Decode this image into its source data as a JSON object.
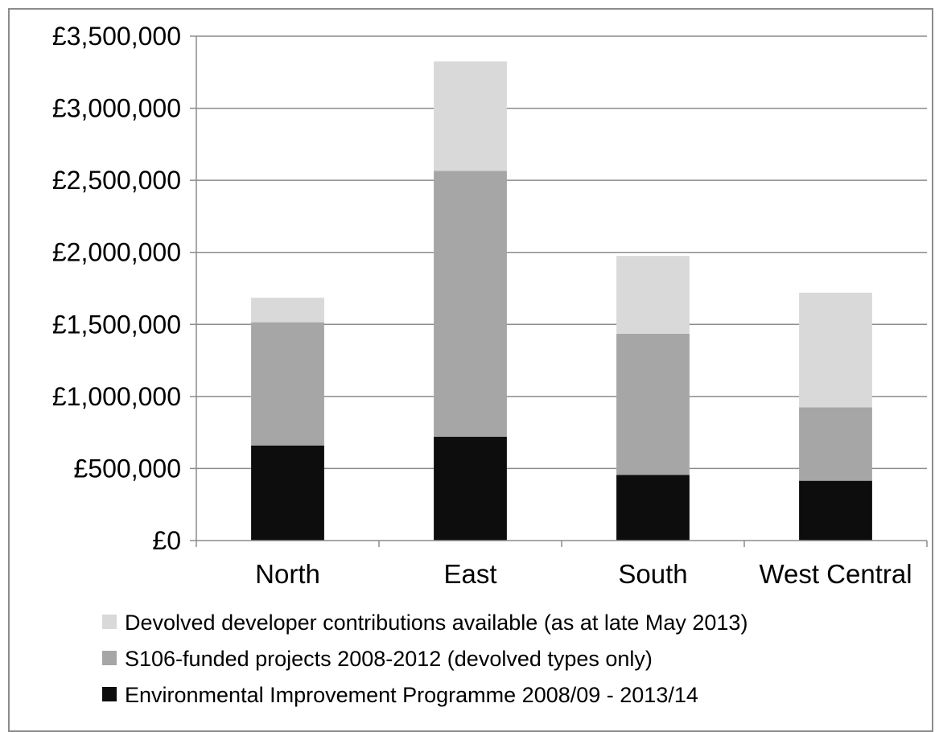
{
  "chart_data": {
    "type": "bar",
    "stacked": true,
    "categories": [
      "North",
      "East",
      "South",
      "West Central"
    ],
    "series": [
      {
        "name": "Environmental Improvement Programme 2008/09 - 2013/14",
        "color": "#0d0d0d",
        "values": [
          660000,
          720000,
          455000,
          415000
        ]
      },
      {
        "name": "S106-funded projects 2008-2012 (devolved types only)",
        "color": "#a6a6a6",
        "values": [
          855000,
          1845000,
          980000,
          510000
        ]
      },
      {
        "name": "Devolved developer contributions available (as at late May 2013)",
        "color": "#d9d9d9",
        "values": [
          170000,
          760000,
          540000,
          795000
        ]
      }
    ],
    "ylim": [
      0,
      3500000
    ],
    "yticks": [
      0,
      500000,
      1000000,
      1500000,
      2000000,
      2500000,
      3000000,
      3500000
    ],
    "ytick_labels": [
      "£0",
      "£500,000",
      "£1,000,000",
      "£1,500,000",
      "£2,000,000",
      "£2,500,000",
      "£3,000,000",
      "£3,500,000"
    ],
    "grid": true,
    "legend_position": "bottom",
    "legend_order": [
      2,
      1,
      0
    ],
    "title": "",
    "xlabel": "",
    "ylabel": ""
  }
}
